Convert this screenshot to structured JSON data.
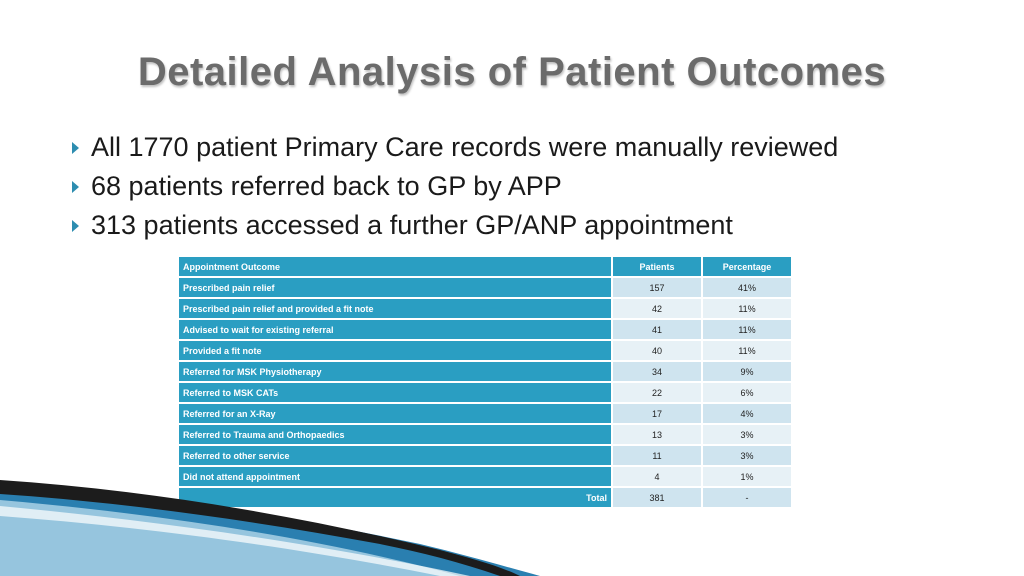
{
  "slide": {
    "title": "Detailed Analysis of Patient Outcomes",
    "bullets": [
      "All 1770 patient Primary Care records were manually reviewed",
      "68 patients referred back to GP by APP",
      "313 patients accessed a further GP/ANP appointment"
    ]
  },
  "table": {
    "headers": [
      "Appointment Outcome",
      "Patients",
      "Percentage"
    ],
    "rows": [
      {
        "outcome": "Prescribed pain relief",
        "patients": "157",
        "percentage": "41%"
      },
      {
        "outcome": "Prescribed pain relief and provided a fit note",
        "patients": "42",
        "percentage": "11%"
      },
      {
        "outcome": "Advised to wait for existing referral",
        "patients": "41",
        "percentage": "11%"
      },
      {
        "outcome": "Provided a fit note",
        "patients": "40",
        "percentage": "11%"
      },
      {
        "outcome": "Referred for MSK Physiotherapy",
        "patients": "34",
        "percentage": "9%"
      },
      {
        "outcome": "Referred to MSK CATs",
        "patients": "22",
        "percentage": "6%"
      },
      {
        "outcome": "Referred for an X-Ray",
        "patients": "17",
        "percentage": "4%"
      },
      {
        "outcome": "Referred to Trauma and Orthopaedics",
        "patients": "13",
        "percentage": "3%"
      },
      {
        "outcome": "Referred to other service",
        "patients": "11",
        "percentage": "3%"
      },
      {
        "outcome": "Did not attend appointment",
        "patients": "4",
        "percentage": "1%"
      }
    ],
    "total": {
      "label": "Total",
      "patients": "381",
      "percentage": "-"
    }
  },
  "colors": {
    "header_blue": "#2a9ec2",
    "cell_light": "#cfe4ef",
    "cell_lighter": "#e7f1f6",
    "title_gray": "#6b6b6b",
    "bullet_marker": "#2d8db0",
    "swoosh_dark": "#1c1c1c",
    "swoosh_blue": "#2a7fb0"
  }
}
